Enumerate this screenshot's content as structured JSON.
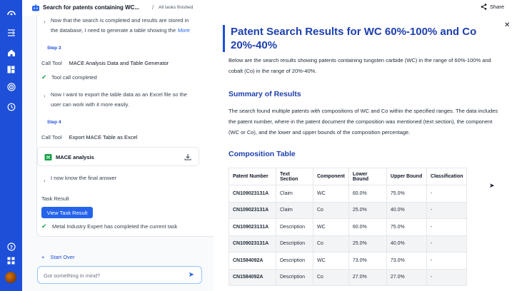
{
  "header": {
    "title": "Search for patents containing WC...",
    "separator": "/",
    "status": "All tasks finished",
    "share_label": "Share"
  },
  "steps": {
    "thought_1_line1": "Now that the search is completed and results are stored in",
    "thought_1_line2": "the database, I need to generate a table showing the",
    "more_label": "More",
    "step3_label": "Step 3",
    "call_tool_label": "Call Tool",
    "step3_tool": "MACE Analysis Data and Table Generator",
    "tool_completed": "Tool call completed",
    "thought_2_line1": "Now I want to export the table data as an Excel file so the",
    "thought_2_line2": "user can work with it more easily.",
    "step4_label": "Step 4",
    "step4_tool": "Export MACE Table as Excel",
    "file_name": "MACE analysis",
    "final_thought": "I now know the final answer",
    "task_result_label": "Task Result",
    "view_result_button": "View Task Result",
    "completion_text": "Metal Industry Expert has completed the current task"
  },
  "chat": {
    "start_over": "Start Over",
    "input_placeholder": "Got something in mind?"
  },
  "report": {
    "title": "Patent Search Results for WC 60%-100% and Co 20%-40%",
    "intro_line1": "Below are the search results showing patents containing tungsten carbide (WC) in the range of 60%-100% and",
    "intro_line2": "cobalt (Co) in the range of 20%-40%.",
    "summary_heading": "Summary of Results",
    "summary_line1": "The search found multiple patents with compositions of WC and Co within the specified ranges. The data includes",
    "summary_line2": "the patent number, where in the patent document the composition was mentioned (text section), the component",
    "summary_line3": "(WC or Co), and the lower and upper bounds of the composition percentage.",
    "table_heading": "Composition Table",
    "columns": [
      "Patent Number",
      "Text Section",
      "Component",
      "Lower Bound",
      "Upper Bound",
      "Classification"
    ],
    "rows": [
      [
        "CN109023131A",
        "Claim",
        "WC",
        "60.0%",
        "75.0%",
        "-"
      ],
      [
        "CN109023131A",
        "Claim",
        "Co",
        "25.0%",
        "40.0%",
        "-"
      ],
      [
        "CN109023131A",
        "Description",
        "WC",
        "60.0%",
        "75.0%",
        "-"
      ],
      [
        "CN109023131A",
        "Description",
        "Co",
        "25.0%",
        "40.0%",
        "-"
      ],
      [
        "CN1584092A",
        "Description",
        "WC",
        "73.0%",
        "73.0%",
        "-"
      ],
      [
        "CN1584092A",
        "Description",
        "Co",
        "27.0%",
        "27.0%",
        "-"
      ]
    ]
  },
  "icons": {
    "rail": [
      "expand-sidebar-icon",
      "home-icon",
      "library-icon",
      "radar-icon",
      "history-icon",
      "help-icon",
      "apps-grid-icon"
    ],
    "accent_color": "#1d4fd8"
  }
}
